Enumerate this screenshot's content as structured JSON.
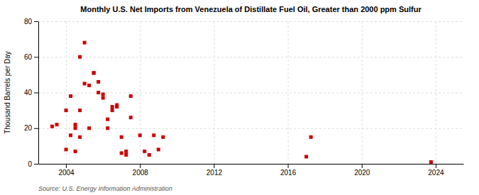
{
  "chart_data": {
    "type": "scatter",
    "title": "Monthly U.S. Net Imports from Venezuela of Distillate Fuel Oil, Greater than 2000 ppm Sulfur",
    "ylabel": "Thousand Barrels per Day",
    "source": "Source: U.S. Energy Information Administration",
    "color": "#cc0000",
    "marker": "square",
    "grid": true,
    "xlim": [
      2002.5,
      2025.5
    ],
    "ylim": [
      0,
      80
    ],
    "xticks": [
      2004,
      2008,
      2012,
      2016,
      2020,
      2024
    ],
    "yticks": [
      0,
      20,
      40,
      60,
      80
    ],
    "x": [
      2003.25,
      2003.5,
      2004.0,
      2004.0,
      2004.25,
      2004.25,
      2004.5,
      2004.5,
      2004.5,
      2004.75,
      2004.75,
      2004.75,
      2005.0,
      2005.0,
      2005.25,
      2005.25,
      2005.5,
      2005.5,
      2005.75,
      2005.75,
      2006.0,
      2006.0,
      2006.25,
      2006.25,
      2006.5,
      2006.5,
      2006.75,
      2006.75,
      2007.0,
      2007.0,
      2007.25,
      2007.25,
      2007.5,
      2007.5,
      2008.0,
      2008.25,
      2008.5,
      2008.75,
      2009.0,
      2009.25,
      2017.0,
      2017.25,
      2023.75
    ],
    "values": [
      21,
      22,
      30,
      8,
      38,
      16,
      20,
      22,
      7,
      30,
      15,
      60,
      68,
      45,
      44,
      20,
      51,
      51,
      40,
      46,
      39,
      37,
      20,
      25,
      32,
      30,
      33,
      32,
      15,
      6,
      5,
      7,
      38,
      26,
      16,
      7,
      5,
      16,
      8,
      15,
      4,
      15,
      1
    ]
  }
}
